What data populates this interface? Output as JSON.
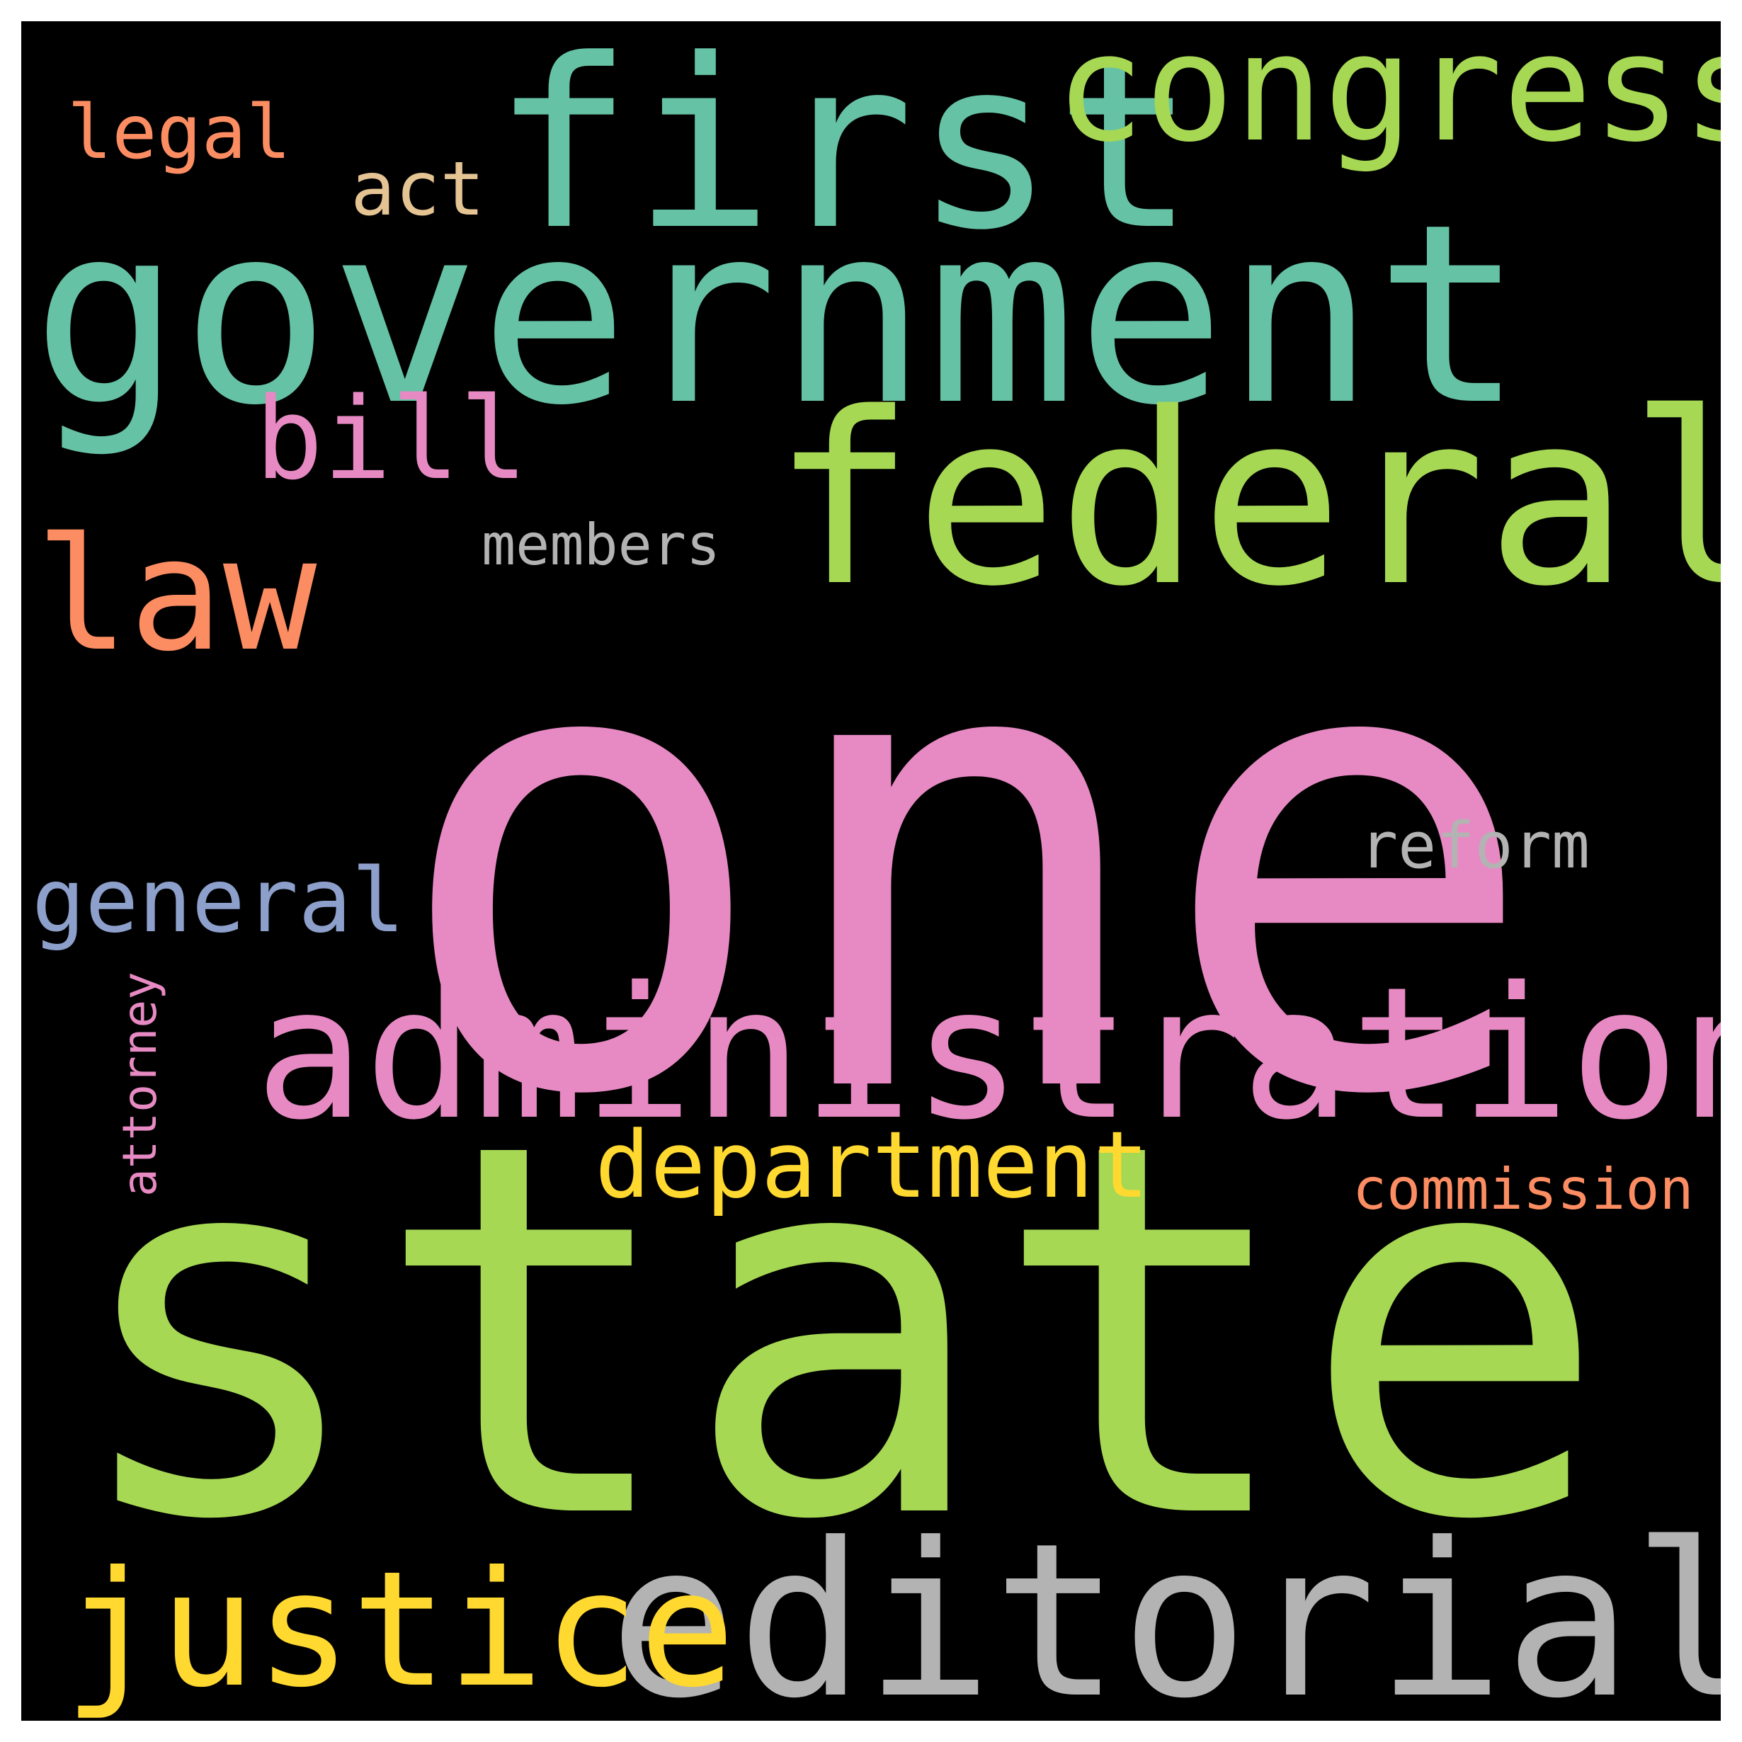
{
  "words": [
    {
      "text": "one",
      "color": "#e78ac3"
    },
    {
      "text": "state",
      "color": "#a6d854"
    },
    {
      "text": "government",
      "color": "#66c2a5"
    },
    {
      "text": "first",
      "color": "#66c2a5"
    },
    {
      "text": "federal",
      "color": "#a6d854"
    },
    {
      "text": "administration",
      "color": "#e78ac3"
    },
    {
      "text": "editorial",
      "color": "#b3b3b3"
    },
    {
      "text": "congress",
      "color": "#a6d854"
    },
    {
      "text": "justice",
      "color": "#ffd92f"
    },
    {
      "text": "law",
      "color": "#fc8d62"
    },
    {
      "text": "bill",
      "color": "#e78ac3"
    },
    {
      "text": "department",
      "color": "#ffd92f"
    },
    {
      "text": "general",
      "color": "#8da0cb"
    },
    {
      "text": "legal",
      "color": "#fc8d62"
    },
    {
      "text": "act",
      "color": "#e5c494"
    },
    {
      "text": "reform",
      "color": "#b3b3b3"
    },
    {
      "text": "commission",
      "color": "#fc8d62"
    },
    {
      "text": "members",
      "color": "#b3b3b3"
    },
    {
      "text": "attorney",
      "color": "#e78ac3"
    }
  ]
}
